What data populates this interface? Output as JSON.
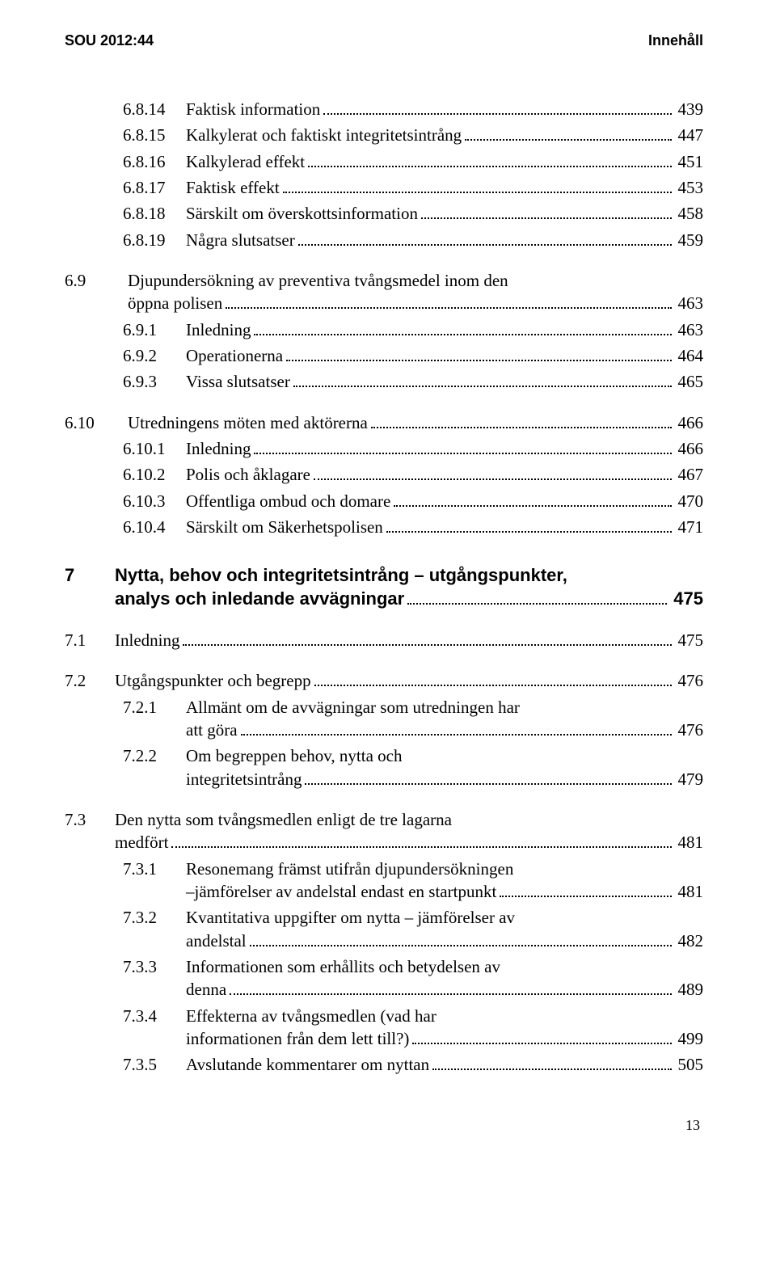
{
  "header": {
    "left": "SOU 2012:44",
    "right": "Innehåll"
  },
  "entries": [
    {
      "num": "6.8.14",
      "label": "Faktisk information",
      "page": "439",
      "indent": 1
    },
    {
      "num": "6.8.15",
      "label": "Kalkylerat och faktiskt integritetsintrång",
      "page": "447",
      "indent": 1
    },
    {
      "num": "6.8.16",
      "label": "Kalkylerad effekt",
      "page": "451",
      "indent": 1
    },
    {
      "num": "6.8.17",
      "label": "Faktisk effekt",
      "page": "453",
      "indent": 1
    },
    {
      "num": "6.8.18",
      "label": "Särskilt om överskottsinformation",
      "page": "458",
      "indent": 1
    },
    {
      "num": "6.8.19",
      "label": "Några slutsatser",
      "page": "459",
      "indent": 1
    },
    {
      "num": "6.9",
      "label_lines": [
        "Djupundersökning av preventiva tvångsmedel inom den",
        "öppna polisen"
      ],
      "page": "463",
      "indent": 0,
      "gap": true,
      "numClass": "level-1-num-wide"
    },
    {
      "num": "6.9.1",
      "label": "Inledning",
      "page": "463",
      "indent": 2
    },
    {
      "num": "6.9.2",
      "label": "Operationerna",
      "page": "464",
      "indent": 2
    },
    {
      "num": "6.9.3",
      "label": "Vissa slutsatser",
      "page": "465",
      "indent": 2
    },
    {
      "num": "6.10",
      "label": "Utredningens möten med aktörerna",
      "page": "466",
      "indent": 0,
      "gap": true,
      "numClass": "level-1-num-wide"
    },
    {
      "num": "6.10.1",
      "label": "Inledning",
      "page": "466",
      "indent": 2
    },
    {
      "num": "6.10.2",
      "label": "Polis och åklagare",
      "page": "467",
      "indent": 2
    },
    {
      "num": "6.10.3",
      "label": "Offentliga ombud och domare",
      "page": "470",
      "indent": 2
    },
    {
      "num": "6.10.4",
      "label": "Särskilt om Säkerhetspolisen",
      "page": "471",
      "indent": 2
    },
    {
      "num": "7",
      "label_lines": [
        "Nytta, behov och integritetsintrång – utgångspunkter,",
        "analys och inledande avvägningar"
      ],
      "page": "475",
      "indent": 0,
      "bigGap": true,
      "numClass": "level-1-num",
      "chapter": true
    },
    {
      "num": "7.1",
      "label": "Inledning",
      "page": "475",
      "indent": 0,
      "gap": true,
      "numClass": "level-1-num"
    },
    {
      "num": "7.2",
      "label": "Utgångspunkter och begrepp",
      "page": "476",
      "indent": 0,
      "gap": true,
      "numClass": "level-1-num"
    },
    {
      "num": "7.2.1",
      "label_lines": [
        "Allmänt om de avvägningar som utredningen har",
        "att göra"
      ],
      "page": "476",
      "indent": 2
    },
    {
      "num": "7.2.2",
      "label_lines": [
        "Om begreppen behov, nytta och",
        "integritetsintrång"
      ],
      "page": "479",
      "indent": 2
    },
    {
      "num": "7.3",
      "label_lines": [
        "Den nytta som tvångsmedlen enligt de tre lagarna",
        "medfört"
      ],
      "page": "481",
      "indent": 0,
      "gap": true,
      "numClass": "level-1-num"
    },
    {
      "num": "7.3.1",
      "label_lines": [
        "Resonemang främst utifrån djupundersökningen",
        "–jämförelser av andelstal endast en startpunkt"
      ],
      "page": "481",
      "indent": 2
    },
    {
      "num": "7.3.2",
      "label_lines": [
        "Kvantitativa uppgifter om nytta – jämförelser av",
        "andelstal"
      ],
      "page": "482",
      "indent": 2
    },
    {
      "num": "7.3.3",
      "label_lines": [
        "Informationen som erhållits och betydelsen av",
        "denna"
      ],
      "page": "489",
      "indent": 2
    },
    {
      "num": "7.3.4",
      "label_lines": [
        "Effekterna av tvångsmedlen (vad har",
        "informationen från dem lett till?)"
      ],
      "page": "499",
      "indent": 2
    },
    {
      "num": "7.3.5",
      "label": "Avslutande kommentarer om nyttan",
      "page": "505",
      "indent": 2
    }
  ],
  "footer": {
    "page_number": "13"
  }
}
